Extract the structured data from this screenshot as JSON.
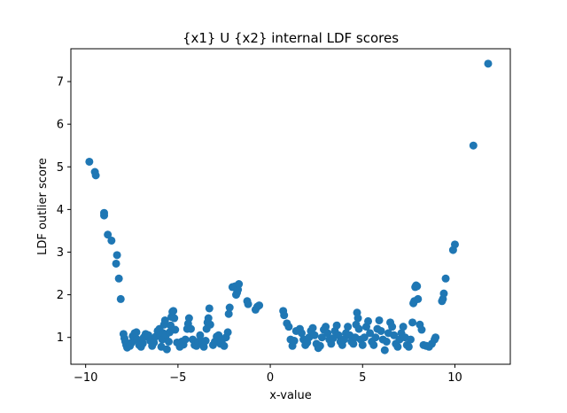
{
  "chart_data": {
    "type": "scatter",
    "title": "{x1} U {x2} internal LDF scores",
    "xlabel": "x-value",
    "ylabel": "LDF outlier score",
    "xlim": [
      -10.8,
      13.0
    ],
    "ylim": [
      0.37,
      7.77
    ],
    "xticks": [
      -10,
      -5,
      0,
      5,
      10
    ],
    "yticks": [
      1,
      2,
      3,
      4,
      5,
      6,
      7
    ],
    "grid": false,
    "legend": "none",
    "marker_color": "#1f77b4",
    "series": [
      {
        "points": [
          [
            -9.8,
            5.12
          ],
          [
            -9.5,
            4.88
          ],
          [
            -9.45,
            4.8
          ],
          [
            -9.0,
            3.92
          ],
          [
            -9.0,
            3.86
          ],
          [
            -8.8,
            3.41
          ],
          [
            -8.6,
            3.27
          ],
          [
            -8.3,
            2.93
          ],
          [
            -8.35,
            2.73
          ],
          [
            -8.2,
            2.38
          ],
          [
            -8.1,
            1.9
          ],
          [
            -7.95,
            1.08
          ],
          [
            -7.9,
            0.98
          ],
          [
            -7.85,
            0.9
          ],
          [
            -7.8,
            0.82
          ],
          [
            -7.75,
            0.76
          ],
          [
            -7.6,
            0.8
          ],
          [
            -7.5,
            0.88
          ],
          [
            -7.45,
            1.03
          ],
          [
            -7.35,
            1.1
          ],
          [
            -7.25,
            1.12
          ],
          [
            -7.2,
            0.95
          ],
          [
            -7.1,
            0.82
          ],
          [
            -7.0,
            0.78
          ],
          [
            -6.9,
            0.86
          ],
          [
            -6.85,
            1.0
          ],
          [
            -6.75,
            1.08
          ],
          [
            -6.6,
            1.05
          ],
          [
            -6.5,
            0.92
          ],
          [
            -6.4,
            0.8
          ],
          [
            -6.3,
            0.88
          ],
          [
            -6.2,
            1.02
          ],
          [
            -6.1,
            1.15
          ],
          [
            -6.0,
            1.2
          ],
          [
            -5.95,
            1.05
          ],
          [
            -5.9,
            0.78
          ],
          [
            -5.85,
            0.95
          ],
          [
            -5.8,
            1.1
          ],
          [
            -5.75,
            1.3
          ],
          [
            -5.7,
            1.4
          ],
          [
            -5.65,
            1.05
          ],
          [
            -5.6,
            0.72
          ],
          [
            -5.5,
            0.9
          ],
          [
            -5.45,
            1.12
          ],
          [
            -5.4,
            1.28
          ],
          [
            -5.35,
            1.48
          ],
          [
            -5.3,
            1.6
          ],
          [
            -5.25,
            1.62
          ],
          [
            -5.2,
            1.45
          ],
          [
            -5.15,
            1.18
          ],
          [
            -5.05,
            0.88
          ],
          [
            -4.9,
            0.78
          ],
          [
            -4.8,
            0.9
          ],
          [
            -4.7,
            0.83
          ],
          [
            -4.6,
            0.95
          ],
          [
            -4.5,
            1.2
          ],
          [
            -4.45,
            1.32
          ],
          [
            -4.4,
            1.45
          ],
          [
            -4.3,
            1.2
          ],
          [
            -4.2,
            0.95
          ],
          [
            -4.1,
            0.82
          ],
          [
            -4.0,
            0.8
          ],
          [
            -3.9,
            0.9
          ],
          [
            -3.8,
            1.05
          ],
          [
            -3.7,
            0.9
          ],
          [
            -3.6,
            0.78
          ],
          [
            -3.5,
            0.92
          ],
          [
            -3.45,
            1.2
          ],
          [
            -3.4,
            1.35
          ],
          [
            -3.35,
            1.45
          ],
          [
            -3.3,
            1.68
          ],
          [
            -3.25,
            1.3
          ],
          [
            -3.1,
            0.82
          ],
          [
            -3.0,
            0.9
          ],
          [
            -2.9,
            1.02
          ],
          [
            -2.8,
            1.05
          ],
          [
            -2.7,
            0.85
          ],
          [
            -2.6,
            0.95
          ],
          [
            -2.5,
            0.8
          ],
          [
            -2.4,
            1.0
          ],
          [
            -2.3,
            1.12
          ],
          [
            -2.25,
            1.55
          ],
          [
            -2.2,
            1.7
          ],
          [
            -2.05,
            2.18
          ],
          [
            -1.9,
            2.2
          ],
          [
            -1.85,
            2.0
          ],
          [
            -1.8,
            2.05
          ],
          [
            -1.75,
            2.12
          ],
          [
            -1.7,
            2.25
          ],
          [
            -1.25,
            1.85
          ],
          [
            -1.2,
            1.78
          ],
          [
            -0.8,
            1.65
          ],
          [
            -0.7,
            1.72
          ],
          [
            -0.6,
            1.75
          ],
          [
            0.7,
            1.62
          ],
          [
            0.75,
            1.52
          ],
          [
            0.9,
            1.33
          ],
          [
            1.0,
            1.25
          ],
          [
            1.1,
            0.95
          ],
          [
            1.2,
            0.8
          ],
          [
            1.3,
            0.92
          ],
          [
            1.4,
            1.15
          ],
          [
            1.6,
            1.2
          ],
          [
            1.7,
            1.1
          ],
          [
            1.8,
            0.95
          ],
          [
            1.9,
            0.82
          ],
          [
            2.0,
            0.88
          ],
          [
            2.1,
            1.0
          ],
          [
            2.2,
            1.15
          ],
          [
            2.3,
            1.22
          ],
          [
            2.4,
            1.05
          ],
          [
            2.5,
            0.85
          ],
          [
            2.6,
            0.75
          ],
          [
            2.7,
            0.8
          ],
          [
            2.8,
            1.0
          ],
          [
            2.9,
            1.18
          ],
          [
            3.0,
            1.25
          ],
          [
            3.1,
            1.1
          ],
          [
            3.2,
            0.95
          ],
          [
            3.3,
            0.85
          ],
          [
            3.4,
            0.98
          ],
          [
            3.5,
            1.15
          ],
          [
            3.6,
            1.28
          ],
          [
            3.7,
            1.05
          ],
          [
            3.8,
            0.9
          ],
          [
            3.9,
            0.82
          ],
          [
            4.0,
            0.95
          ],
          [
            4.1,
            1.1
          ],
          [
            4.2,
            1.25
          ],
          [
            4.3,
            1.05
          ],
          [
            4.4,
            0.9
          ],
          [
            4.5,
            0.85
          ],
          [
            4.6,
            1.0
          ],
          [
            4.65,
            1.3
          ],
          [
            4.7,
            1.58
          ],
          [
            4.75,
            1.45
          ],
          [
            4.8,
            1.2
          ],
          [
            4.9,
            0.95
          ],
          [
            5.0,
            0.82
          ],
          [
            5.1,
            1.0
          ],
          [
            5.2,
            1.25
          ],
          [
            5.3,
            1.38
          ],
          [
            5.4,
            1.1
          ],
          [
            5.5,
            0.9
          ],
          [
            5.6,
            0.82
          ],
          [
            5.7,
            1.0
          ],
          [
            5.8,
            1.2
          ],
          [
            5.9,
            1.4
          ],
          [
            6.0,
            1.15
          ],
          [
            6.1,
            0.95
          ],
          [
            6.2,
            0.7
          ],
          [
            6.3,
            0.9
          ],
          [
            6.4,
            1.1
          ],
          [
            6.5,
            1.35
          ],
          [
            6.6,
            1.25
          ],
          [
            6.7,
            1.05
          ],
          [
            6.8,
            0.85
          ],
          [
            6.9,
            0.78
          ],
          [
            7.0,
            0.95
          ],
          [
            7.1,
            1.1
          ],
          [
            7.2,
            1.25
          ],
          [
            7.3,
            1.0
          ],
          [
            7.4,
            0.82
          ],
          [
            7.5,
            0.78
          ],
          [
            7.6,
            0.95
          ],
          [
            7.7,
            1.35
          ],
          [
            7.75,
            1.8
          ],
          [
            7.8,
            1.85
          ],
          [
            7.85,
            2.18
          ],
          [
            7.9,
            2.22
          ],
          [
            7.95,
            2.2
          ],
          [
            8.0,
            1.9
          ],
          [
            8.1,
            1.3
          ],
          [
            8.2,
            1.18
          ],
          [
            8.3,
            0.82
          ],
          [
            8.45,
            0.8
          ],
          [
            8.6,
            0.78
          ],
          [
            8.75,
            0.85
          ],
          [
            8.9,
            0.95
          ],
          [
            8.95,
            1.0
          ],
          [
            9.3,
            1.85
          ],
          [
            9.35,
            1.9
          ],
          [
            9.4,
            2.03
          ],
          [
            9.5,
            2.38
          ],
          [
            9.9,
            3.05
          ],
          [
            10.0,
            3.18
          ],
          [
            11.0,
            5.5
          ],
          [
            11.8,
            7.42
          ]
        ]
      }
    ]
  }
}
